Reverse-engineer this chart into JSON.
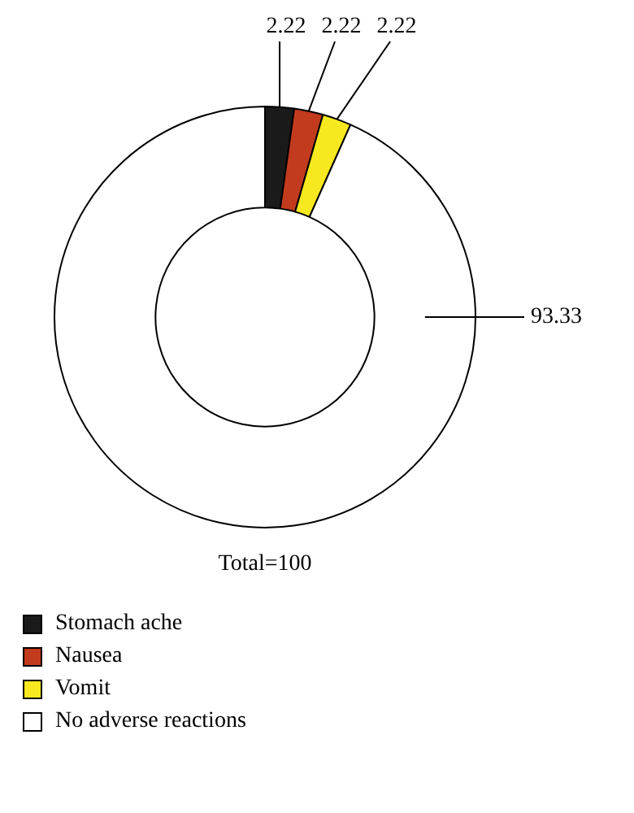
{
  "chart_data": {
    "type": "donut",
    "categories": [
      "Stomach ache",
      "Nausea",
      "Vomit",
      "No adverse reactions"
    ],
    "values": [
      2.22,
      2.22,
      2.22,
      93.33
    ],
    "colors": [
      "#1a1a1a",
      "#c23b1e",
      "#f7e81f",
      "#ffffff"
    ],
    "data_labels": true,
    "annotations": [
      "Total=100"
    ],
    "legend": "bottom left"
  }
}
